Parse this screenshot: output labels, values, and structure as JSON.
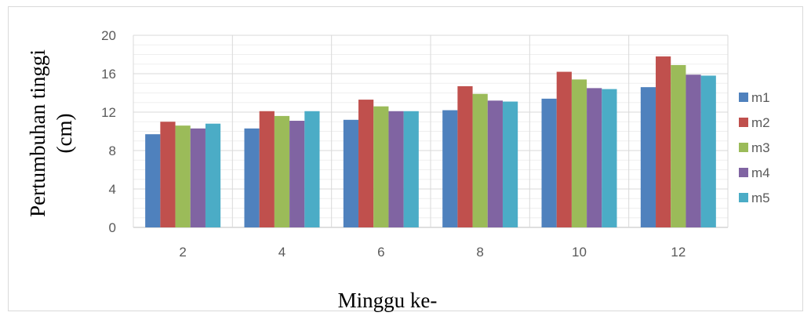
{
  "chart_data": {
    "type": "bar",
    "title": "",
    "xlabel": "Minggu ke-",
    "ylabel_line1": "Pertumbuhan tinggi",
    "ylabel_line2": "(cm)",
    "categories": [
      "2",
      "4",
      "6",
      "8",
      "10",
      "12"
    ],
    "ylim": [
      0,
      20
    ],
    "yticks": [
      0,
      4,
      8,
      12,
      16,
      20
    ],
    "grid": true,
    "legend_position": "right",
    "series": [
      {
        "name": "m1",
        "color": "#4f81bd",
        "values": [
          9.7,
          10.3,
          11.2,
          12.2,
          13.4,
          14.6
        ]
      },
      {
        "name": "m2",
        "color": "#c0504d",
        "values": [
          11.0,
          12.1,
          13.3,
          14.7,
          16.2,
          17.8
        ]
      },
      {
        "name": "m3",
        "color": "#9bbb59",
        "values": [
          10.6,
          11.6,
          12.6,
          13.9,
          15.4,
          16.9
        ]
      },
      {
        "name": "m4",
        "color": "#8064a2",
        "values": [
          10.3,
          11.1,
          12.1,
          13.2,
          14.5,
          15.9
        ]
      },
      {
        "name": "m5",
        "color": "#4bacc6",
        "values": [
          10.8,
          12.1,
          12.1,
          13.1,
          14.4,
          15.8
        ]
      }
    ]
  }
}
